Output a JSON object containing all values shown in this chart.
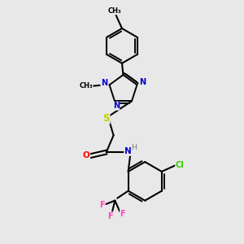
{
  "background_color": "#e8e8e8",
  "bond_color": "#000000",
  "atom_colors": {
    "N": "#0000cc",
    "O": "#ff0000",
    "S": "#cccc00",
    "Cl": "#33cc00",
    "F": "#ff44bb",
    "C": "#000000",
    "H": "#777777"
  },
  "figsize": [
    3.0,
    3.0
  ],
  "dpi": 100
}
